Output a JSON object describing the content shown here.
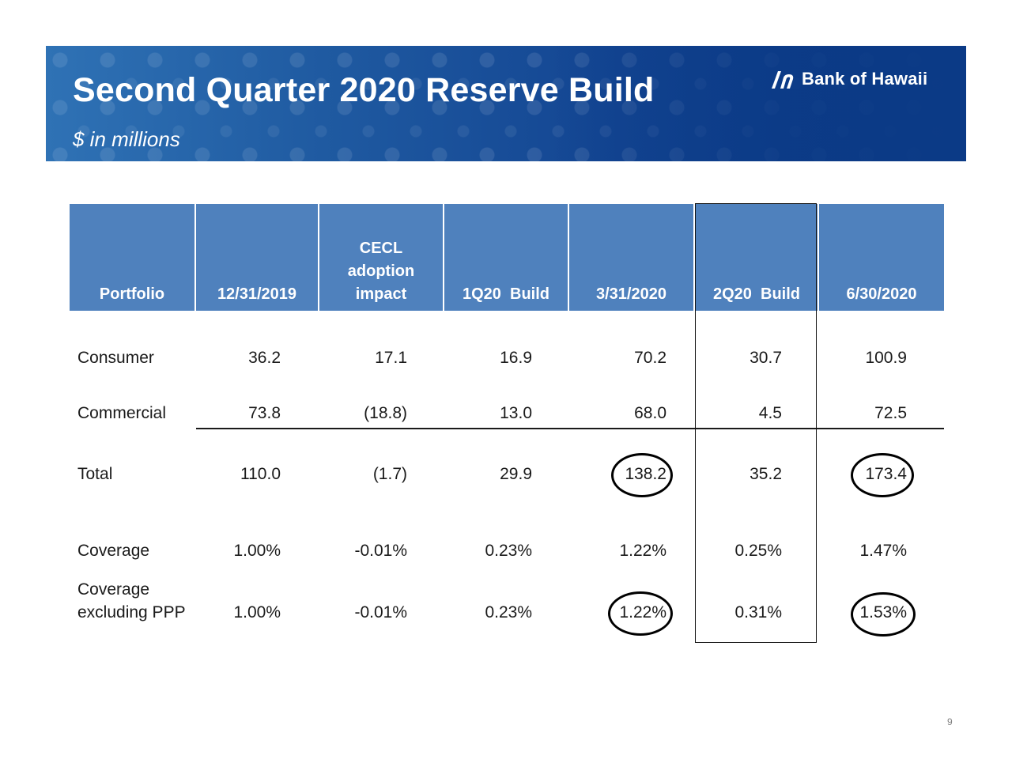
{
  "header": {
    "title": "Second Quarter 2020 Reserve Build",
    "subtitle": "$ in millions",
    "logo_text": "Bank of Hawaii",
    "background_color": "#1f5aa1"
  },
  "table": {
    "header_color": "#4f81bd",
    "columns": [
      {
        "lines": [
          "Portfolio"
        ]
      },
      {
        "lines": [
          "12/31/2019"
        ]
      },
      {
        "lines": [
          "CECL",
          "adoption",
          "impact"
        ]
      },
      {
        "lines": [
          "1Q20  Build"
        ]
      },
      {
        "lines": [
          "3/31/2020"
        ]
      },
      {
        "lines": [
          "2Q20  Build"
        ]
      },
      {
        "lines": [
          "6/30/2020"
        ]
      }
    ],
    "rows": [
      {
        "label": "Consumer",
        "values": [
          "36.2",
          "17.1",
          "16.9",
          "70.2",
          "30.7",
          "100.9"
        ]
      },
      {
        "label": "Commercial",
        "values": [
          "73.8",
          "(18.8)",
          "13.0",
          "68.0",
          "4.5",
          "72.5"
        ]
      },
      {
        "label": "Total",
        "values": [
          "110.0",
          "(1.7)",
          "29.9",
          "138.2",
          "35.2",
          "173.4"
        ]
      },
      {
        "label": "Coverage",
        "values": [
          "1.00%",
          "-0.01%",
          "0.23%",
          "1.22%",
          "0.25%",
          "1.47%"
        ]
      },
      {
        "label_lines": [
          "Coverage",
          "excluding PPP"
        ],
        "values": [
          "1.00%",
          "-0.01%",
          "0.23%",
          "1.22%",
          "0.31%",
          "1.53%"
        ]
      }
    ]
  },
  "page_number": "9"
}
